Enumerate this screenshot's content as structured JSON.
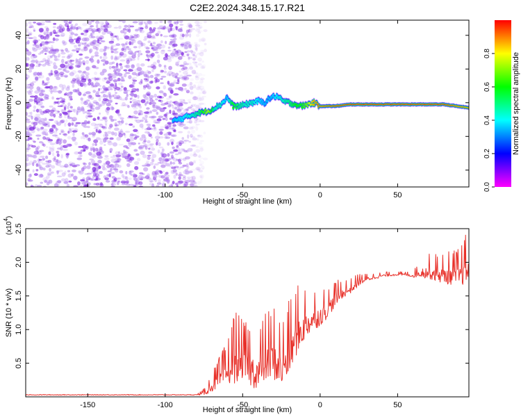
{
  "title": "C2E2.2024.348.15.17.R21",
  "chart_data": [
    {
      "type": "heatmap",
      "title": "C2E2.2024.348.15.17.R21",
      "xlabel": "Height of straight line (km)",
      "ylabel": "Frequency (Hz)",
      "xlim": [
        -190,
        96
      ],
      "ylim": [
        -50,
        49
      ],
      "x_ticks": [
        "-150",
        "-100",
        "-50",
        "0",
        "50"
      ],
      "x_tick_values": [
        -150,
        -100,
        -50,
        0,
        50
      ],
      "y_ticks": [
        "40",
        "20",
        "0",
        "-20",
        "-40"
      ],
      "y_tick_values": [
        40,
        20,
        0,
        -20,
        -40
      ],
      "grid": false,
      "colorbar": {
        "label": "Normalized spectral amplitude",
        "range": [
          0.0,
          1.0
        ],
        "ticks": [
          "0.0",
          "0.2",
          "0.4",
          "0.6",
          "0.8"
        ],
        "tick_values": [
          0.0,
          0.2,
          0.4,
          0.6,
          0.8
        ],
        "colormap": [
          "#ff00ff",
          "#0000ff",
          "#00ffff",
          "#00ff00",
          "#ffff00",
          "#ff0000"
        ]
      },
      "noise_region_x": [
        -190,
        -80
      ],
      "ridge": {
        "x": [
          -95,
          -88,
          -82,
          -78,
          -72,
          -68,
          -64,
          -60,
          -56,
          -52,
          -48,
          -44,
          -40,
          -36,
          -32,
          -28,
          -24,
          -20,
          -16,
          -12,
          -8,
          -4,
          0,
          10,
          20,
          40,
          60,
          80,
          96
        ],
        "f": [
          -11,
          -9,
          -7,
          -6,
          -5,
          -3,
          -1,
          3,
          -2,
          -2,
          -1,
          0,
          1,
          0,
          3,
          4,
          1,
          0,
          -1,
          -2,
          -1,
          0,
          -2,
          -2,
          -1,
          -1,
          -1,
          -1,
          -3
        ],
        "amp": [
          0.35,
          0.4,
          0.45,
          0.5,
          0.75,
          0.45,
          0.45,
          0.35,
          0.6,
          0.5,
          0.45,
          0.45,
          0.4,
          0.35,
          0.35,
          0.4,
          0.45,
          0.5,
          0.6,
          0.6,
          0.7,
          0.9,
          0.95,
          1.0,
          1.0,
          1.0,
          1.0,
          1.0,
          0.9
        ]
      }
    },
    {
      "type": "line",
      "xlabel": "Height of straight line (km)",
      "ylabel": "SNR (10 * v/v)",
      "multiplier": "(x10",
      "multiplier_exp": "4",
      "multiplier_close": ")",
      "xlim": [
        -190,
        96
      ],
      "ylim": [
        0,
        2.5
      ],
      "x_ticks": [
        "-150",
        "-100",
        "-50",
        "0",
        "50"
      ],
      "x_tick_values": [
        -150,
        -100,
        -50,
        0,
        50
      ],
      "y_ticks": [
        "0.5",
        "1.0",
        "1.5",
        "2.0",
        "2.5"
      ],
      "y_tick_values": [
        0.5,
        1.0,
        1.5,
        2.0,
        2.5
      ],
      "grid": false,
      "series": [
        {
          "color": "#e8312a",
          "envelope_x": [
            -190,
            -150,
            -100,
            -80,
            -75,
            -70,
            -60,
            -55,
            -50,
            -45,
            -40,
            -35,
            -30,
            -25,
            -20,
            -15,
            -10,
            -5,
            0,
            5,
            10,
            15,
            20,
            25,
            30,
            40,
            50,
            55,
            60,
            65,
            70,
            80,
            90,
            96
          ],
          "envelope_y": [
            0.03,
            0.03,
            0.03,
            0.03,
            0.05,
            0.15,
            0.35,
            0.5,
            0.5,
            0.4,
            0.35,
            0.5,
            0.55,
            0.4,
            0.6,
            0.9,
            1.05,
            1.15,
            1.2,
            1.3,
            1.45,
            1.55,
            1.6,
            1.7,
            1.75,
            1.8,
            1.82,
            1.82,
            1.8,
            1.85,
            1.85,
            1.8,
            1.8,
            1.9
          ],
          "noise_amplitude": [
            0.0,
            0.0,
            0.0,
            0.0,
            0.05,
            0.15,
            0.35,
            0.6,
            0.45,
            0.5,
            0.5,
            0.55,
            0.6,
            0.55,
            0.6,
            0.55,
            0.45,
            0.35,
            0.3,
            0.25,
            0.2,
            0.15,
            0.12,
            0.1,
            0.06,
            0.04,
            0.03,
            0.03,
            0.05,
            0.15,
            0.2,
            0.25,
            0.3,
            0.45
          ]
        }
      ]
    }
  ]
}
